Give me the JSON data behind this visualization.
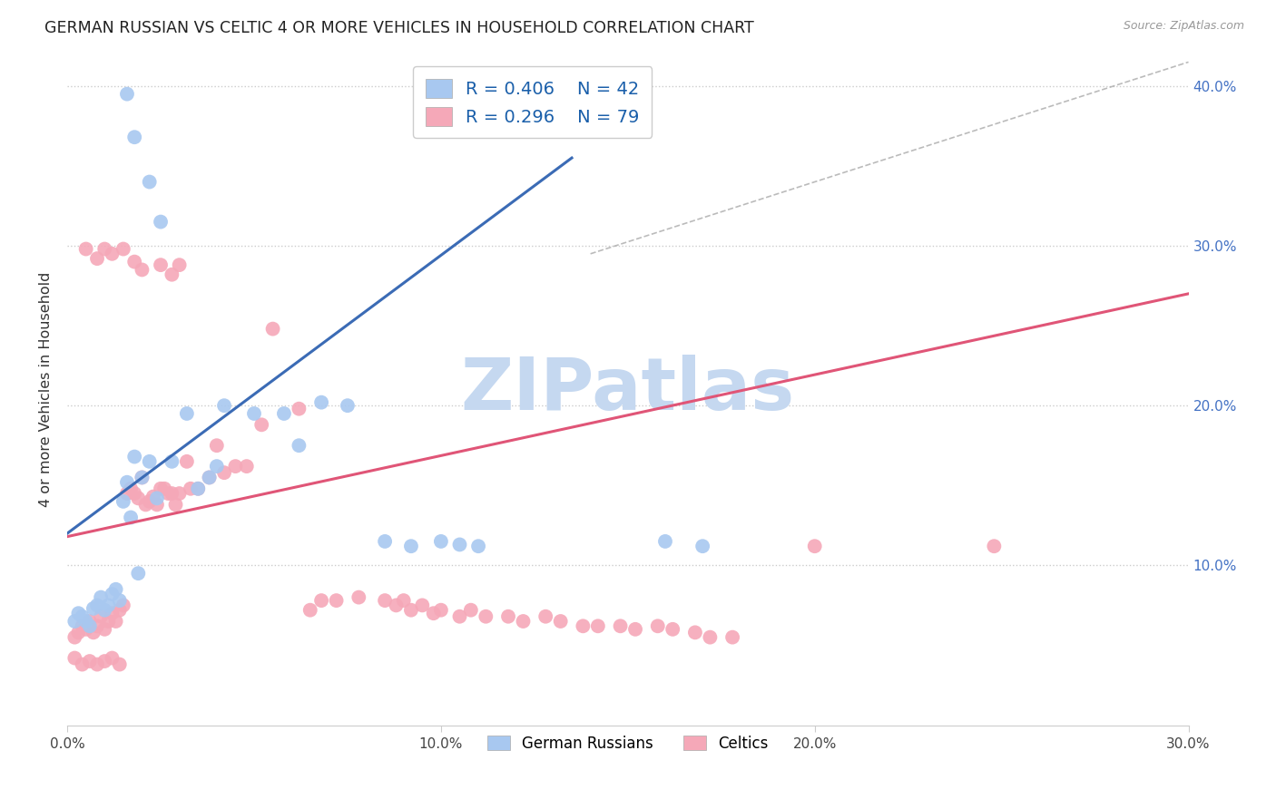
{
  "title": "GERMAN RUSSIAN VS CELTIC 4 OR MORE VEHICLES IN HOUSEHOLD CORRELATION CHART",
  "source": "Source: ZipAtlas.com",
  "ylabel": "4 or more Vehicles in Household",
  "x_min": 0.0,
  "x_max": 0.3,
  "y_min": 0.0,
  "y_max": 0.42,
  "x_ticks": [
    0.0,
    0.1,
    0.2,
    0.3
  ],
  "x_tick_labels": [
    "0.0%",
    "10.0%",
    "20.0%",
    "30.0%"
  ],
  "y_ticks": [
    0.1,
    0.2,
    0.3,
    0.4
  ],
  "y_tick_labels_right": [
    "10.0%",
    "20.0%",
    "30.0%",
    "40.0%"
  ],
  "legend_label_blue": "German Russians",
  "legend_label_pink": "Celtics",
  "blue_color": "#A8C8F0",
  "pink_color": "#F5A8B8",
  "blue_line_color": "#3B6BB5",
  "pink_line_color": "#E05577",
  "blue_line": [
    [
      0.0,
      0.12
    ],
    [
      0.135,
      0.355
    ]
  ],
  "pink_line": [
    [
      0.0,
      0.118
    ],
    [
      0.3,
      0.27
    ]
  ],
  "diag_line": [
    [
      0.14,
      0.295
    ],
    [
      0.3,
      0.415
    ]
  ],
  "blue_scatter": [
    [
      0.002,
      0.065
    ],
    [
      0.003,
      0.07
    ],
    [
      0.004,
      0.068
    ],
    [
      0.005,
      0.065
    ],
    [
      0.006,
      0.062
    ],
    [
      0.007,
      0.073
    ],
    [
      0.008,
      0.075
    ],
    [
      0.009,
      0.08
    ],
    [
      0.01,
      0.072
    ],
    [
      0.011,
      0.075
    ],
    [
      0.012,
      0.082
    ],
    [
      0.013,
      0.085
    ],
    [
      0.014,
      0.078
    ],
    [
      0.015,
      0.14
    ],
    [
      0.016,
      0.152
    ],
    [
      0.017,
      0.13
    ],
    [
      0.018,
      0.168
    ],
    [
      0.019,
      0.095
    ],
    [
      0.02,
      0.155
    ],
    [
      0.022,
      0.165
    ],
    [
      0.024,
      0.142
    ],
    [
      0.028,
      0.165
    ],
    [
      0.032,
      0.195
    ],
    [
      0.035,
      0.148
    ],
    [
      0.038,
      0.155
    ],
    [
      0.04,
      0.162
    ],
    [
      0.042,
      0.2
    ],
    [
      0.05,
      0.195
    ],
    [
      0.058,
      0.195
    ],
    [
      0.062,
      0.175
    ],
    [
      0.068,
      0.202
    ],
    [
      0.075,
      0.2
    ],
    [
      0.085,
      0.115
    ],
    [
      0.092,
      0.112
    ],
    [
      0.1,
      0.115
    ],
    [
      0.105,
      0.113
    ],
    [
      0.11,
      0.112
    ],
    [
      0.16,
      0.115
    ],
    [
      0.17,
      0.112
    ],
    [
      0.016,
      0.395
    ],
    [
      0.018,
      0.368
    ],
    [
      0.022,
      0.34
    ],
    [
      0.025,
      0.315
    ]
  ],
  "pink_scatter": [
    [
      0.002,
      0.055
    ],
    [
      0.003,
      0.058
    ],
    [
      0.004,
      0.062
    ],
    [
      0.005,
      0.06
    ],
    [
      0.006,
      0.065
    ],
    [
      0.007,
      0.058
    ],
    [
      0.008,
      0.062
    ],
    [
      0.009,
      0.068
    ],
    [
      0.01,
      0.06
    ],
    [
      0.011,
      0.065
    ],
    [
      0.012,
      0.07
    ],
    [
      0.013,
      0.065
    ],
    [
      0.014,
      0.072
    ],
    [
      0.015,
      0.075
    ],
    [
      0.016,
      0.145
    ],
    [
      0.017,
      0.148
    ],
    [
      0.018,
      0.145
    ],
    [
      0.019,
      0.142
    ],
    [
      0.02,
      0.155
    ],
    [
      0.021,
      0.138
    ],
    [
      0.022,
      0.14
    ],
    [
      0.023,
      0.143
    ],
    [
      0.024,
      0.138
    ],
    [
      0.025,
      0.148
    ],
    [
      0.026,
      0.148
    ],
    [
      0.027,
      0.145
    ],
    [
      0.028,
      0.145
    ],
    [
      0.029,
      0.138
    ],
    [
      0.03,
      0.145
    ],
    [
      0.032,
      0.165
    ],
    [
      0.033,
      0.148
    ],
    [
      0.035,
      0.148
    ],
    [
      0.038,
      0.155
    ],
    [
      0.04,
      0.175
    ],
    [
      0.042,
      0.158
    ],
    [
      0.045,
      0.162
    ],
    [
      0.048,
      0.162
    ],
    [
      0.055,
      0.248
    ],
    [
      0.062,
      0.198
    ],
    [
      0.065,
      0.072
    ],
    [
      0.068,
      0.078
    ],
    [
      0.072,
      0.078
    ],
    [
      0.078,
      0.08
    ],
    [
      0.085,
      0.078
    ],
    [
      0.088,
      0.075
    ],
    [
      0.09,
      0.078
    ],
    [
      0.092,
      0.072
    ],
    [
      0.095,
      0.075
    ],
    [
      0.098,
      0.07
    ],
    [
      0.1,
      0.072
    ],
    [
      0.105,
      0.068
    ],
    [
      0.108,
      0.072
    ],
    [
      0.112,
      0.068
    ],
    [
      0.118,
      0.068
    ],
    [
      0.122,
      0.065
    ],
    [
      0.128,
      0.068
    ],
    [
      0.132,
      0.065
    ],
    [
      0.138,
      0.062
    ],
    [
      0.142,
      0.062
    ],
    [
      0.148,
      0.062
    ],
    [
      0.152,
      0.06
    ],
    [
      0.158,
      0.062
    ],
    [
      0.162,
      0.06
    ],
    [
      0.168,
      0.058
    ],
    [
      0.172,
      0.055
    ],
    [
      0.178,
      0.055
    ],
    [
      0.005,
      0.298
    ],
    [
      0.008,
      0.292
    ],
    [
      0.01,
      0.298
    ],
    [
      0.012,
      0.295
    ],
    [
      0.015,
      0.298
    ],
    [
      0.018,
      0.29
    ],
    [
      0.02,
      0.285
    ],
    [
      0.025,
      0.288
    ],
    [
      0.028,
      0.282
    ],
    [
      0.03,
      0.288
    ],
    [
      0.052,
      0.188
    ],
    [
      0.2,
      0.112
    ],
    [
      0.248,
      0.112
    ],
    [
      0.002,
      0.042
    ],
    [
      0.004,
      0.038
    ],
    [
      0.006,
      0.04
    ],
    [
      0.008,
      0.038
    ],
    [
      0.01,
      0.04
    ],
    [
      0.012,
      0.042
    ],
    [
      0.014,
      0.038
    ]
  ],
  "watermark": "ZIPatlas",
  "watermark_color": "#C5D8F0",
  "background_color": "#FFFFFF",
  "grid_color": "#CCCCCC",
  "grid_linestyle": "dotted"
}
